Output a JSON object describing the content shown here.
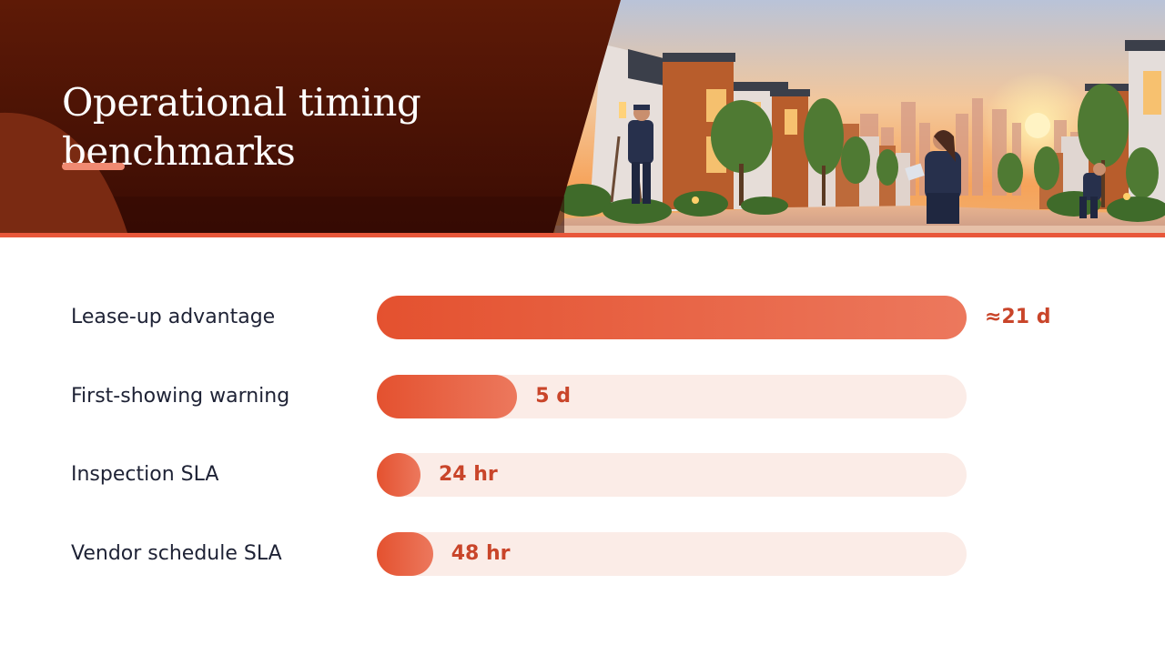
{
  "header": {
    "title": "Operational timing benchmarks",
    "illustration": "townhouse-street-sunset-with-field-staff"
  },
  "colors": {
    "title_panel": "#5a1a08",
    "accent": "#e8573a",
    "bar_fill_start": "#e4512f",
    "bar_fill_end": "#ec785d",
    "bar_track": "#fbece7",
    "value_text": "#c9452a",
    "label_text": "#1e2235"
  },
  "chart_data": {
    "type": "bar",
    "orientation": "horizontal",
    "categories": [
      "Lease-up advantage",
      "First-showing warning",
      "Inspection SLA",
      "Vendor schedule SLA"
    ],
    "value_labels": [
      "≈21 d",
      "5 d",
      "24 hr",
      "48 hr"
    ],
    "values": [
      21,
      5,
      1,
      2
    ],
    "unit": "days",
    "xlim": [
      0,
      21
    ],
    "grid": false,
    "legend": "none"
  }
}
